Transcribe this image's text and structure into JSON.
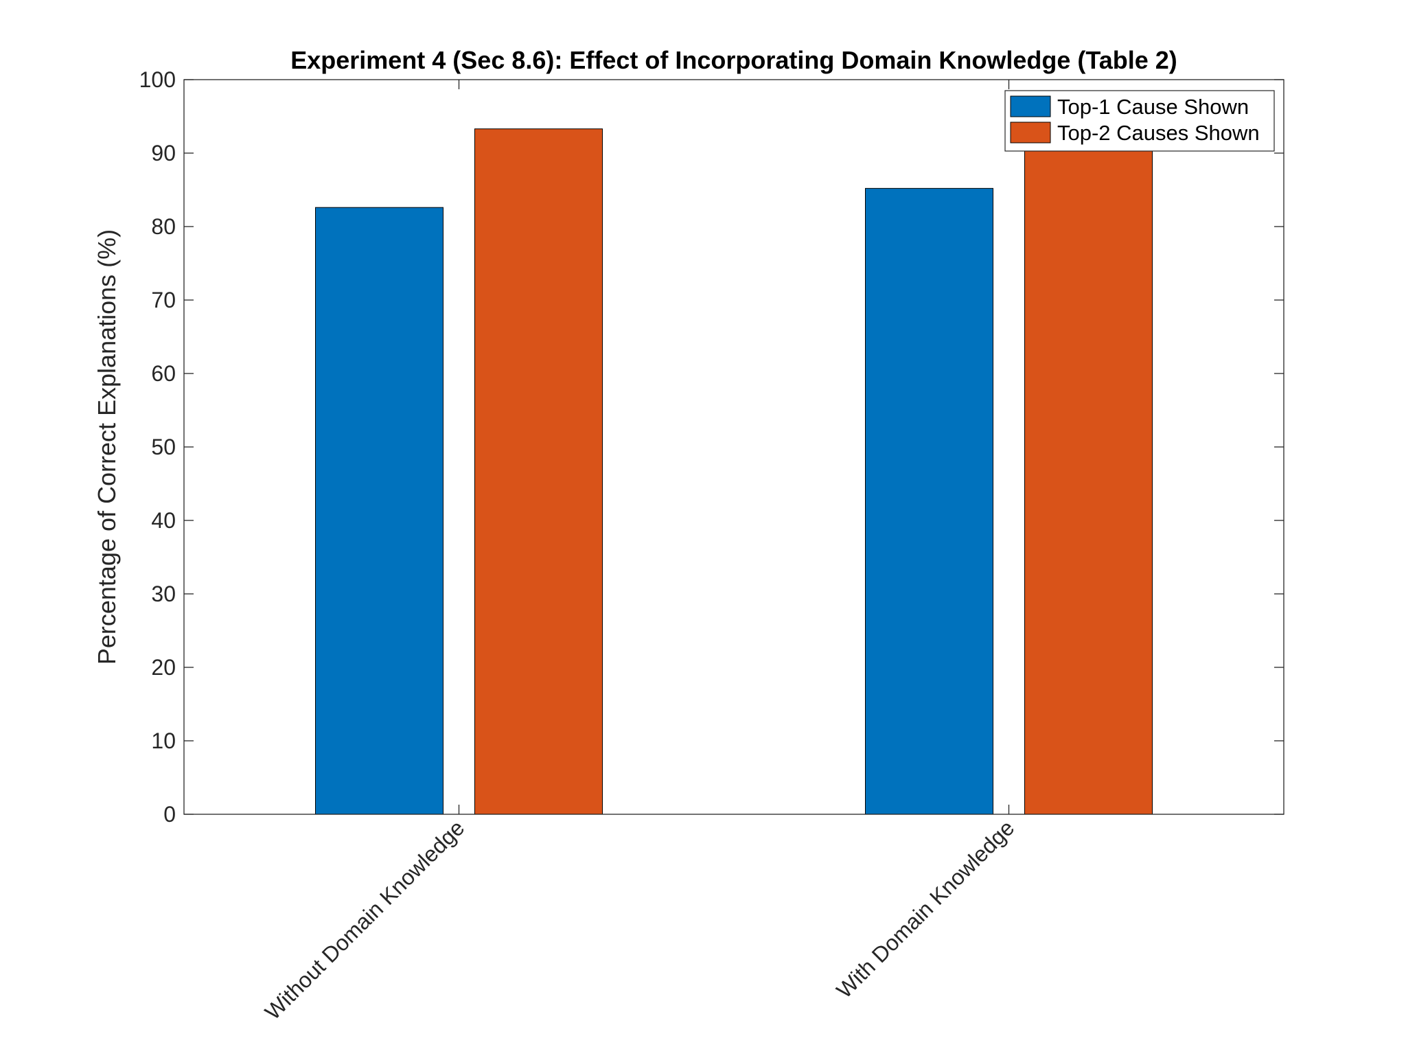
{
  "chart_data": {
    "type": "bar",
    "title": "Experiment 4 (Sec 8.6): Effect of Incorporating Domain Knowledge (Table 2)",
    "xlabel": "",
    "ylabel": "Percentage of Correct Explanations (%)",
    "ylim": [
      0,
      100
    ],
    "yticks": [
      0,
      10,
      20,
      30,
      40,
      50,
      60,
      70,
      80,
      90,
      100
    ],
    "categories": [
      "Without Domain Knowledge",
      "With Domain Knowledge"
    ],
    "series": [
      {
        "name": "Top-1 Cause Shown",
        "color": "#0072BD",
        "values": [
          82.6,
          85.2
        ]
      },
      {
        "name": "Top-2 Causes Shown",
        "color": "#D95319",
        "values": [
          93.3,
          92.6
        ]
      }
    ],
    "legend_position": "top-right",
    "grid": false
  }
}
